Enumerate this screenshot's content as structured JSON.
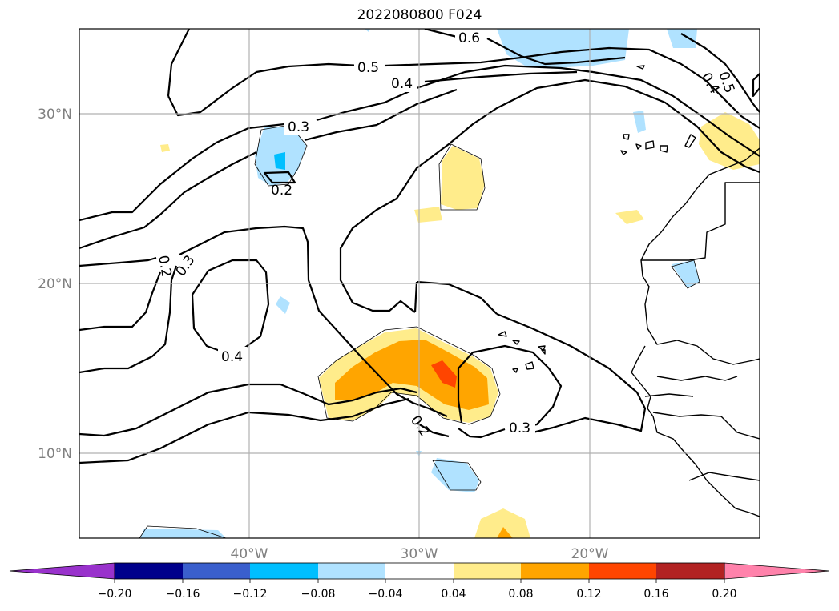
{
  "title": "2022080800 F024",
  "lat_labels": [
    "30°N",
    "20°N",
    "10°N"
  ],
  "lon_labels": [
    "40°W",
    "30°W",
    "20°W"
  ],
  "colorbar": {
    "tick_labels": [
      "−0.20",
      "−0.16",
      "−0.12",
      "−0.08",
      "−0.04",
      "0.04",
      "0.08",
      "0.12",
      "0.16",
      "0.20"
    ],
    "colors": [
      "#9932cc",
      "#00008b",
      "#3a5fcd",
      "#00bfff",
      "#b0e2ff",
      "#ffffff",
      "#ffec8b",
      "#ffa500",
      "#ff4500",
      "#b22222",
      "#ff82ab"
    ]
  },
  "contour_labels": [
    "0.6",
    "0.5",
    "0.4",
    "0.3",
    "0.2",
    "0.2",
    "0.3",
    "0.4",
    "0.2",
    "0.3",
    "0.5",
    "0.4"
  ],
  "chart_data": {
    "type": "heatmap",
    "title": "2022080800 F024",
    "xlabel": "",
    "ylabel": "",
    "lon_range": [
      -50,
      -10
    ],
    "lat_range": [
      5,
      35
    ],
    "contour_levels": [
      0.2,
      0.3,
      0.4,
      0.5,
      0.6
    ],
    "color_levels": [
      -0.2,
      -0.16,
      -0.12,
      -0.08,
      -0.04,
      0.04,
      0.08,
      0.12,
      0.16,
      0.2
    ],
    "extend": "both",
    "grid": true
  }
}
